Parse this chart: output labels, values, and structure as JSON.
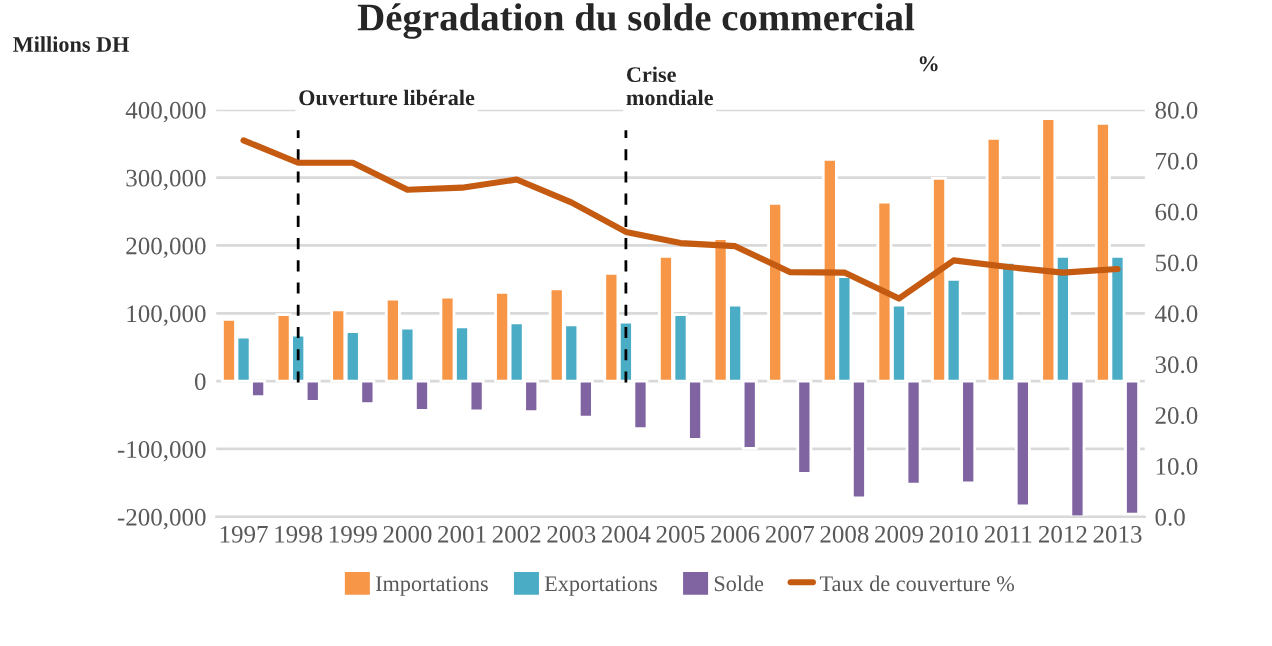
{
  "chart_data": {
    "type": "bar",
    "title": "Dégradation du solde commercial",
    "ylabel": "Millions DH",
    "y2label": "%",
    "categories": [
      "1997",
      "1998",
      "1999",
      "2000",
      "2001",
      "2002",
      "2003",
      "2004",
      "2005",
      "2006",
      "2007",
      "2008",
      "2009",
      "2010",
      "2011",
      "2012",
      "2013"
    ],
    "series": [
      {
        "name": "Importations",
        "color": "#f79646",
        "values": [
          91000,
          98000,
          105000,
          121000,
          124000,
          131000,
          136000,
          159000,
          184000,
          210000,
          262000,
          327000,
          264000,
          299000,
          358000,
          387000,
          380000
        ]
      },
      {
        "name": "Exportations",
        "color": "#4bacc6",
        "values": [
          65000,
          68000,
          73000,
          78000,
          80000,
          86000,
          83000,
          87000,
          98000,
          112000,
          null,
          154000,
          112000,
          150000,
          175000,
          184000,
          184000
        ]
      },
      {
        "name": "Solde",
        "color": "#8064a2",
        "values": [
          -23000,
          -30000,
          -33000,
          -43000,
          -44000,
          -45000,
          -53000,
          -70000,
          -86000,
          -99000,
          -136000,
          -172000,
          -152000,
          -150000,
          -184000,
          -200000,
          -196000
        ]
      },
      {
        "name": "Taux de couverture %",
        "type": "line",
        "axis": "y2",
        "color": "#c55a11",
        "values": [
          74.0,
          69.6,
          69.6,
          64.3,
          64.7,
          66.3,
          61.8,
          56.0,
          53.8,
          53.2,
          48.1,
          48.0,
          42.9,
          50.4,
          49.1,
          48.0,
          48.7
        ]
      }
    ],
    "ylim": [
      -200000,
      400000
    ],
    "yticks": [
      {
        "value": -200000,
        "label": "-200,000"
      },
      {
        "value": -100000,
        "label": "-100,000"
      },
      {
        "value": 0,
        "label": "0"
      },
      {
        "value": 100000,
        "label": "100,000"
      },
      {
        "value": 200000,
        "label": "200,000"
      },
      {
        "value": 300000,
        "label": "300,000"
      },
      {
        "value": 400000,
        "label": "400,000"
      }
    ],
    "y2lim": [
      0,
      80
    ],
    "y2ticks": [
      {
        "value": 0,
        "label": "0.0"
      },
      {
        "value": 10,
        "label": "10.0"
      },
      {
        "value": 20,
        "label": "20.0"
      },
      {
        "value": 30,
        "label": "30.0"
      },
      {
        "value": 40,
        "label": "40.0"
      },
      {
        "value": 50,
        "label": "50.0"
      },
      {
        "value": 60,
        "label": "60.0"
      },
      {
        "value": 70,
        "label": "70.0"
      },
      {
        "value": 80,
        "label": "80.0"
      }
    ],
    "ref_lines": [
      {
        "axis": "x",
        "value": "1998",
        "label": "Ouverture libérale",
        "color": "#000000",
        "line_style": "dashed"
      },
      {
        "axis": "x",
        "value": "2004",
        "label": "Crise\nmondiale",
        "color": "#000000",
        "line_style": "dashed"
      }
    ],
    "grid": "y",
    "legend": "bottom"
  }
}
